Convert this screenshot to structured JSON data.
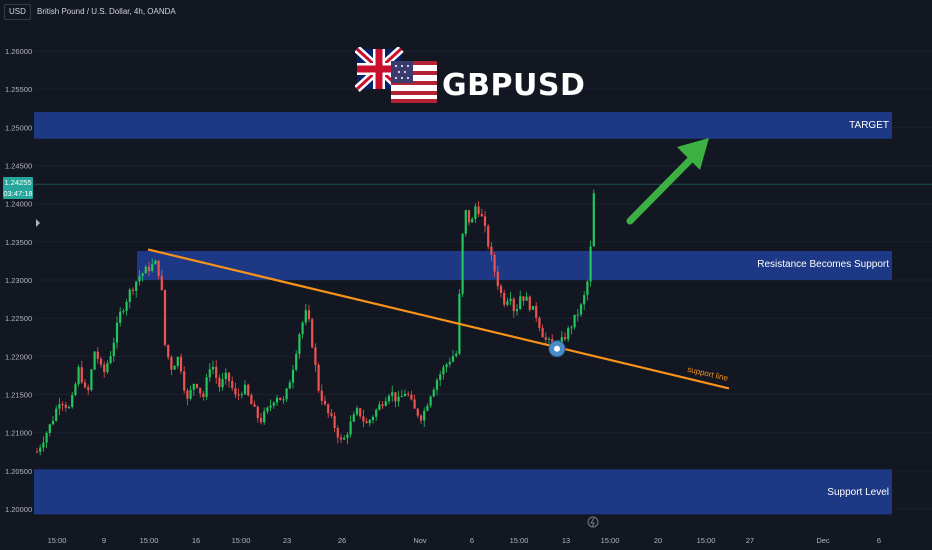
{
  "header": {
    "currency": "USD",
    "symbol_title": "British Pound / U.S. Dollar, 4h, OANDA"
  },
  "price_tag": {
    "price": "1.24255",
    "countdown": "03:47:18"
  },
  "brand_title": "GBPUSD",
  "colors": {
    "background": "#131722",
    "bull": "#26a69a",
    "bull_candle": "#22c55e",
    "bear": "#ef5350",
    "zone": "#1e3a8a",
    "trendline": "#f7931a",
    "arrow": "#3cb043",
    "badge": "#26a69a"
  },
  "chart_data": {
    "type": "candlestick",
    "title": "British Pound / U.S. Dollar, 4h, OANDA",
    "ylim": [
      1.198,
      1.2645
    ],
    "y_ticks": [
      "1.20000",
      "1.20500",
      "1.21000",
      "1.21500",
      "1.22000",
      "1.22500",
      "1.23000",
      "1.23500",
      "1.24000",
      "1.24500",
      "1.25000",
      "1.25500",
      "1.26000"
    ],
    "x_ticks": [
      "15:00",
      "9",
      "15:00",
      "16",
      "15:00",
      "23",
      "26",
      "Nov",
      "6",
      "15:00",
      "13",
      "15:00",
      "20",
      "15:00",
      "27",
      "Dec",
      "6"
    ],
    "last_price": 1.24255,
    "zones": [
      {
        "label": "TARGET",
        "from": 1.2485,
        "to": 1.252
      },
      {
        "label": "Resistance Becomes Support",
        "from": 1.23,
        "to": 1.2338
      },
      {
        "label": "Support Level",
        "from": 1.1993,
        "to": 1.2052
      }
    ],
    "trendline": {
      "label": "support line",
      "from": {
        "x": "Oct 9",
        "y": 1.234
      },
      "to": {
        "x": "Nov 24",
        "y": 1.2158
      }
    },
    "arrow": {
      "direction": "up",
      "target": "TARGET"
    }
  },
  "icons": [
    "uk-flag-icon",
    "us-flag-icon",
    "lightning-icon",
    "pin-marker-icon",
    "price-marker-icon"
  ]
}
